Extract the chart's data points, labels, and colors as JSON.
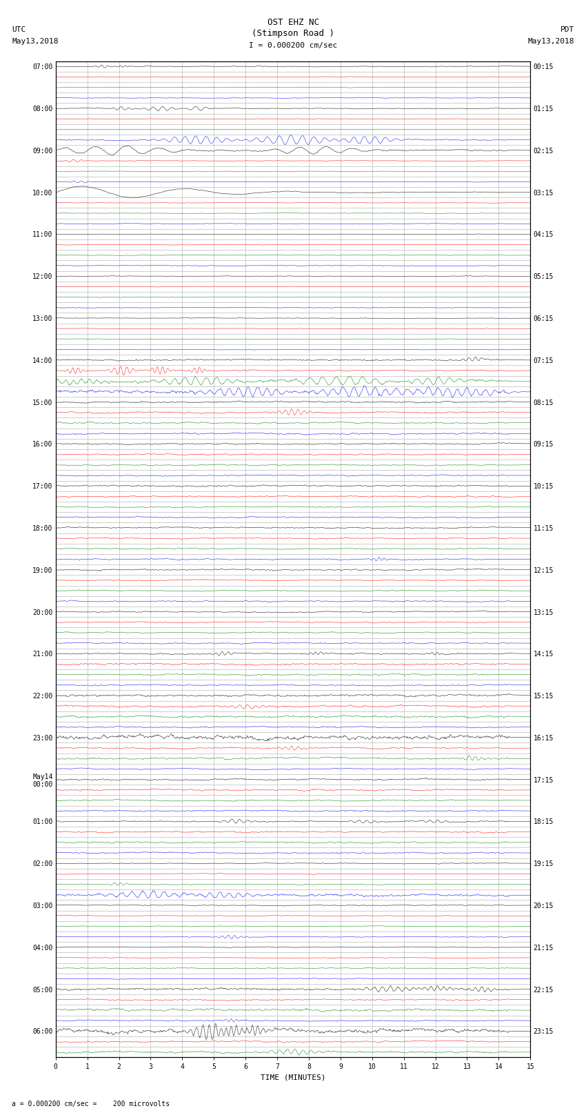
{
  "title_line1": "OST EHZ NC",
  "title_line2": "(Stimpson Road )",
  "title_line3": "I = 0.000200 cm/sec",
  "left_label_top": "UTC",
  "left_label_date": "May13,2018",
  "right_label_top": "PDT",
  "right_label_date": "May13,2018",
  "bottom_label": "TIME (MINUTES)",
  "scale_label": "= 0.000200 cm/sec =    200 microvolts",
  "n_minutes": 15,
  "bg_color": "#ffffff",
  "grid_color": "#aaaaaa",
  "colors_cycle": [
    "black",
    "red",
    "green",
    "blue"
  ],
  "utc_row_labels": [
    "07:00",
    "",
    "",
    "",
    "08:00",
    "",
    "",
    "",
    "09:00",
    "",
    "",
    "",
    "10:00",
    "",
    "",
    "",
    "11:00",
    "",
    "",
    "",
    "12:00",
    "",
    "",
    "",
    "13:00",
    "",
    "",
    "",
    "14:00",
    "",
    "",
    "",
    "15:00",
    "",
    "",
    "",
    "16:00",
    "",
    "",
    "",
    "17:00",
    "",
    "",
    "",
    "18:00",
    "",
    "",
    "",
    "19:00",
    "",
    "",
    "",
    "20:00",
    "",
    "",
    "",
    "21:00",
    "",
    "",
    "",
    "22:00",
    "",
    "",
    "",
    "23:00",
    "",
    "",
    "",
    "May14\n00:00",
    "",
    "",
    "",
    "01:00",
    "",
    "",
    "",
    "02:00",
    "",
    "",
    "",
    "03:00",
    "",
    "",
    "",
    "04:00",
    "",
    "",
    "",
    "05:00",
    "",
    "",
    "",
    "06:00",
    "",
    ""
  ],
  "pdt_row_labels": [
    "00:15",
    "",
    "",
    "",
    "01:15",
    "",
    "",
    "",
    "02:15",
    "",
    "",
    "",
    "03:15",
    "",
    "",
    "",
    "04:15",
    "",
    "",
    "",
    "05:15",
    "",
    "",
    "",
    "06:15",
    "",
    "",
    "",
    "07:15",
    "",
    "",
    "",
    "08:15",
    "",
    "",
    "",
    "09:15",
    "",
    "",
    "",
    "10:15",
    "",
    "",
    "",
    "11:15",
    "",
    "",
    "",
    "12:15",
    "",
    "",
    "",
    "13:15",
    "",
    "",
    "",
    "14:15",
    "",
    "",
    "",
    "15:15",
    "",
    "",
    "",
    "16:15",
    "",
    "",
    "",
    "17:15",
    "",
    "",
    "",
    "18:15",
    "",
    "",
    "",
    "19:15",
    "",
    "",
    "",
    "20:15",
    "",
    "",
    "",
    "21:15",
    "",
    "",
    "",
    "22:15",
    "",
    "",
    "",
    "23:15",
    "",
    ""
  ]
}
